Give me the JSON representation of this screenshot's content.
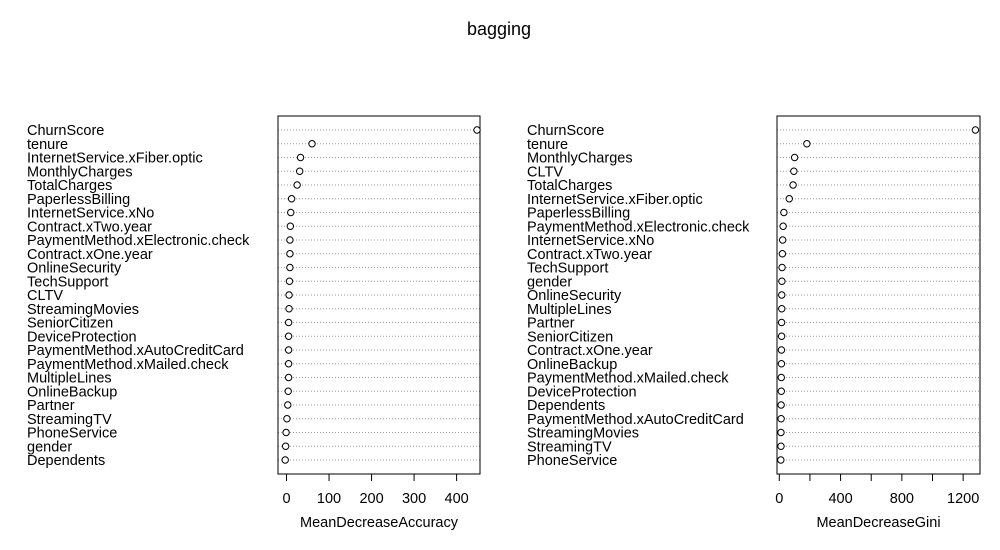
{
  "figure_title": "bagging",
  "chart_data": [
    {
      "type": "scatter",
      "title": "",
      "xlabel": "MeanDecreaseAccuracy",
      "ylabel": "",
      "xlim": [
        -20,
        455
      ],
      "xticks": [
        0,
        100,
        200,
        300,
        400
      ],
      "grid": "dotted horizontal",
      "categories": [
        "ChurnScore",
        "tenure",
        "InternetService.xFiber.optic",
        "MonthlyCharges",
        "TotalCharges",
        "PaperlessBilling",
        "InternetService.xNo",
        "Contract.xTwo.year",
        "PaymentMethod.xElectronic.check",
        "Contract.xOne.year",
        "OnlineSecurity",
        "TechSupport",
        "CLTV",
        "StreamingMovies",
        "SeniorCitizen",
        "DeviceProtection",
        "PaymentMethod.xAutoCreditCard",
        "PaymentMethod.xMailed.check",
        "MultipleLines",
        "OnlineBackup",
        "Partner",
        "StreamingTV",
        "PhoneService",
        "gender",
        "Dependents"
      ],
      "values": [
        448,
        60,
        33,
        31,
        25,
        12,
        10,
        9,
        8,
        8,
        8,
        7,
        6,
        6,
        5,
        5,
        5,
        5,
        5,
        4,
        3,
        1,
        -1,
        -2,
        -3
      ]
    },
    {
      "type": "scatter",
      "title": "",
      "xlabel": "MeanDecreaseGini",
      "ylabel": "",
      "xlim": [
        -15,
        1310
      ],
      "xticks": [
        0,
        400,
        800,
        1200
      ],
      "minor_xticks": [
        200,
        600,
        1000
      ],
      "grid": "dotted horizontal",
      "categories": [
        "ChurnScore",
        "tenure",
        "MonthlyCharges",
        "CLTV",
        "TotalCharges",
        "InternetService.xFiber.optic",
        "PaperlessBilling",
        "PaymentMethod.xElectronic.check",
        "InternetService.xNo",
        "Contract.xTwo.year",
        "TechSupport",
        "gender",
        "OnlineSecurity",
        "MultipleLines",
        "Partner",
        "SeniorCitizen",
        "Contract.xOne.year",
        "OnlineBackup",
        "PaymentMethod.xMailed.check",
        "DeviceProtection",
        "Dependents",
        "PaymentMethod.xAutoCreditCard",
        "StreamingMovies",
        "StreamingTV",
        "PhoneService"
      ],
      "values": [
        1280,
        180,
        100,
        95,
        90,
        65,
        30,
        25,
        22,
        20,
        18,
        17,
        16,
        16,
        15,
        15,
        14,
        14,
        13,
        13,
        12,
        12,
        11,
        11,
        10
      ]
    }
  ]
}
